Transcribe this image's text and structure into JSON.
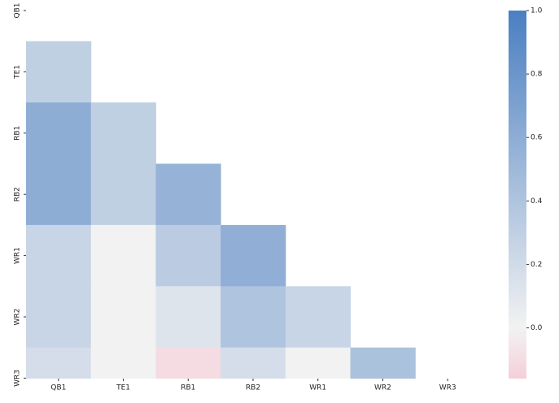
{
  "chart_data": {
    "type": "heatmap",
    "x_categories": [
      "QB1",
      "TE1",
      "RB1",
      "RB2",
      "WR1",
      "WR2",
      "WR3"
    ],
    "y_categories": [
      "QB1",
      "TE1",
      "RB1",
      "RB2",
      "WR1",
      "WR2",
      "WR3"
    ],
    "values": [
      [
        null,
        null,
        null,
        null,
        null,
        null,
        null
      ],
      [
        0.3,
        null,
        null,
        null,
        null,
        null,
        null
      ],
      [
        0.6,
        0.3,
        null,
        null,
        null,
        null,
        null
      ],
      [
        0.6,
        0.3,
        0.55,
        null,
        null,
        null,
        null
      ],
      [
        0.25,
        0.0,
        0.33,
        0.58,
        null,
        null,
        null
      ],
      [
        0.25,
        0.0,
        0.12,
        0.4,
        0.25,
        null,
        null
      ],
      [
        0.18,
        0.0,
        -0.1,
        0.18,
        0.0,
        0.42,
        null
      ]
    ],
    "color_stops": [
      [
        -0.16,
        "#f5cfd9"
      ],
      [
        0,
        "#f2f2f2"
      ],
      [
        1,
        "#4a7fc1"
      ]
    ],
    "clim": [
      -0.16,
      1.0
    ],
    "cticks": [
      {
        "value": 0.0,
        "label": "0.0"
      },
      {
        "value": 0.2,
        "label": "0.2"
      },
      {
        "value": 0.4,
        "label": "0.4"
      },
      {
        "value": 0.6,
        "label": "0.6"
      },
      {
        "value": 0.8,
        "label": "0.8"
      },
      {
        "value": 1.0,
        "label": "1.0"
      }
    ]
  }
}
